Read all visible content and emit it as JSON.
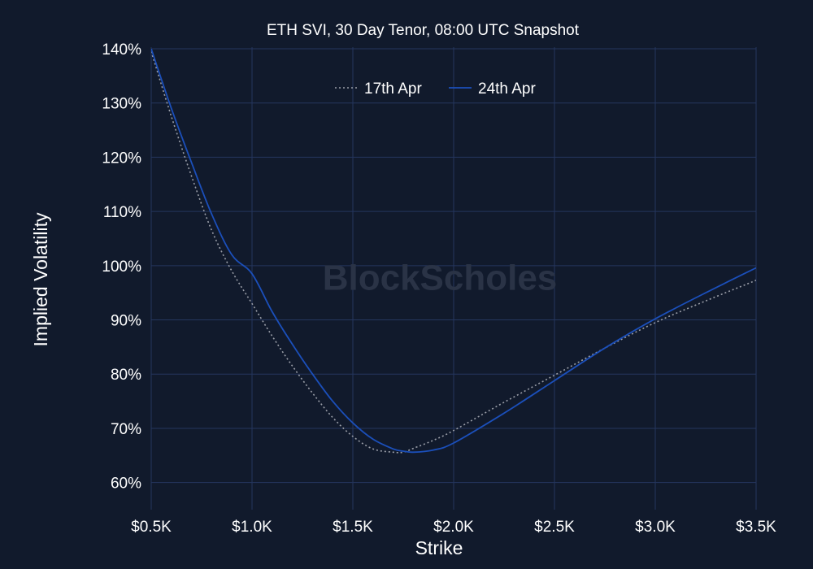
{
  "chart_data": {
    "type": "line",
    "title": "ETH SVI, 30 Day Tenor, 08:00 UTC Snapshot",
    "xlabel": "Strike",
    "ylabel": "Implied Volatility",
    "watermark": "BlockScholes",
    "xlim": [
      500,
      3500
    ],
    "ylim": [
      55,
      140
    ],
    "x_ticks": [
      500,
      1000,
      1500,
      2000,
      2500,
      3000,
      3500
    ],
    "x_tick_labels": [
      "$0.5K",
      "$1.0K",
      "$1.5K",
      "$2.0K",
      "$2.5K",
      "$3.0K",
      "$3.5K"
    ],
    "y_ticks": [
      60,
      70,
      80,
      90,
      100,
      110,
      120,
      130,
      140
    ],
    "y_tick_labels": [
      "60%",
      "70%",
      "80%",
      "90%",
      "100%",
      "110%",
      "120%",
      "130%",
      "140%"
    ],
    "grid": true,
    "legend": "top-center",
    "colors": {
      "background": "#111a2c",
      "grid": "#25365e",
      "text": "#ffffff",
      "watermark": "#2a3346"
    },
    "series": [
      {
        "name": "17th Apr",
        "style": "dotted",
        "color": "#9a9ea8",
        "x": [
          500,
          600,
          700,
          800,
          900,
          1000,
          1100,
          1200,
          1300,
          1400,
          1500,
          1600,
          1700,
          1750,
          1800,
          1900,
          2000,
          2250,
          2500,
          2750,
          3000,
          3250,
          3500
        ],
        "y": [
          139.5,
          127.5,
          116.5,
          106.5,
          99.0,
          93.0,
          87.0,
          81.5,
          76.5,
          72.0,
          68.5,
          66.2,
          65.6,
          65.6,
          66.3,
          67.8,
          69.6,
          74.8,
          79.8,
          84.8,
          89.5,
          93.5,
          97.3
        ]
      },
      {
        "name": "24th Apr",
        "style": "solid",
        "color": "#1b4fba",
        "x": [
          500,
          600,
          700,
          800,
          900,
          1000,
          1100,
          1200,
          1300,
          1400,
          1500,
          1600,
          1700,
          1750,
          1800,
          1900,
          2000,
          2250,
          2500,
          2750,
          3000,
          3250,
          3500
        ],
        "y": [
          140.0,
          129.0,
          119.0,
          109.5,
          102.0,
          98.5,
          91.5,
          85.5,
          80.0,
          75.0,
          71.0,
          68.0,
          66.2,
          65.8,
          65.6,
          66.0,
          67.3,
          72.8,
          78.8,
          84.8,
          90.2,
          95.0,
          99.6
        ]
      }
    ]
  }
}
